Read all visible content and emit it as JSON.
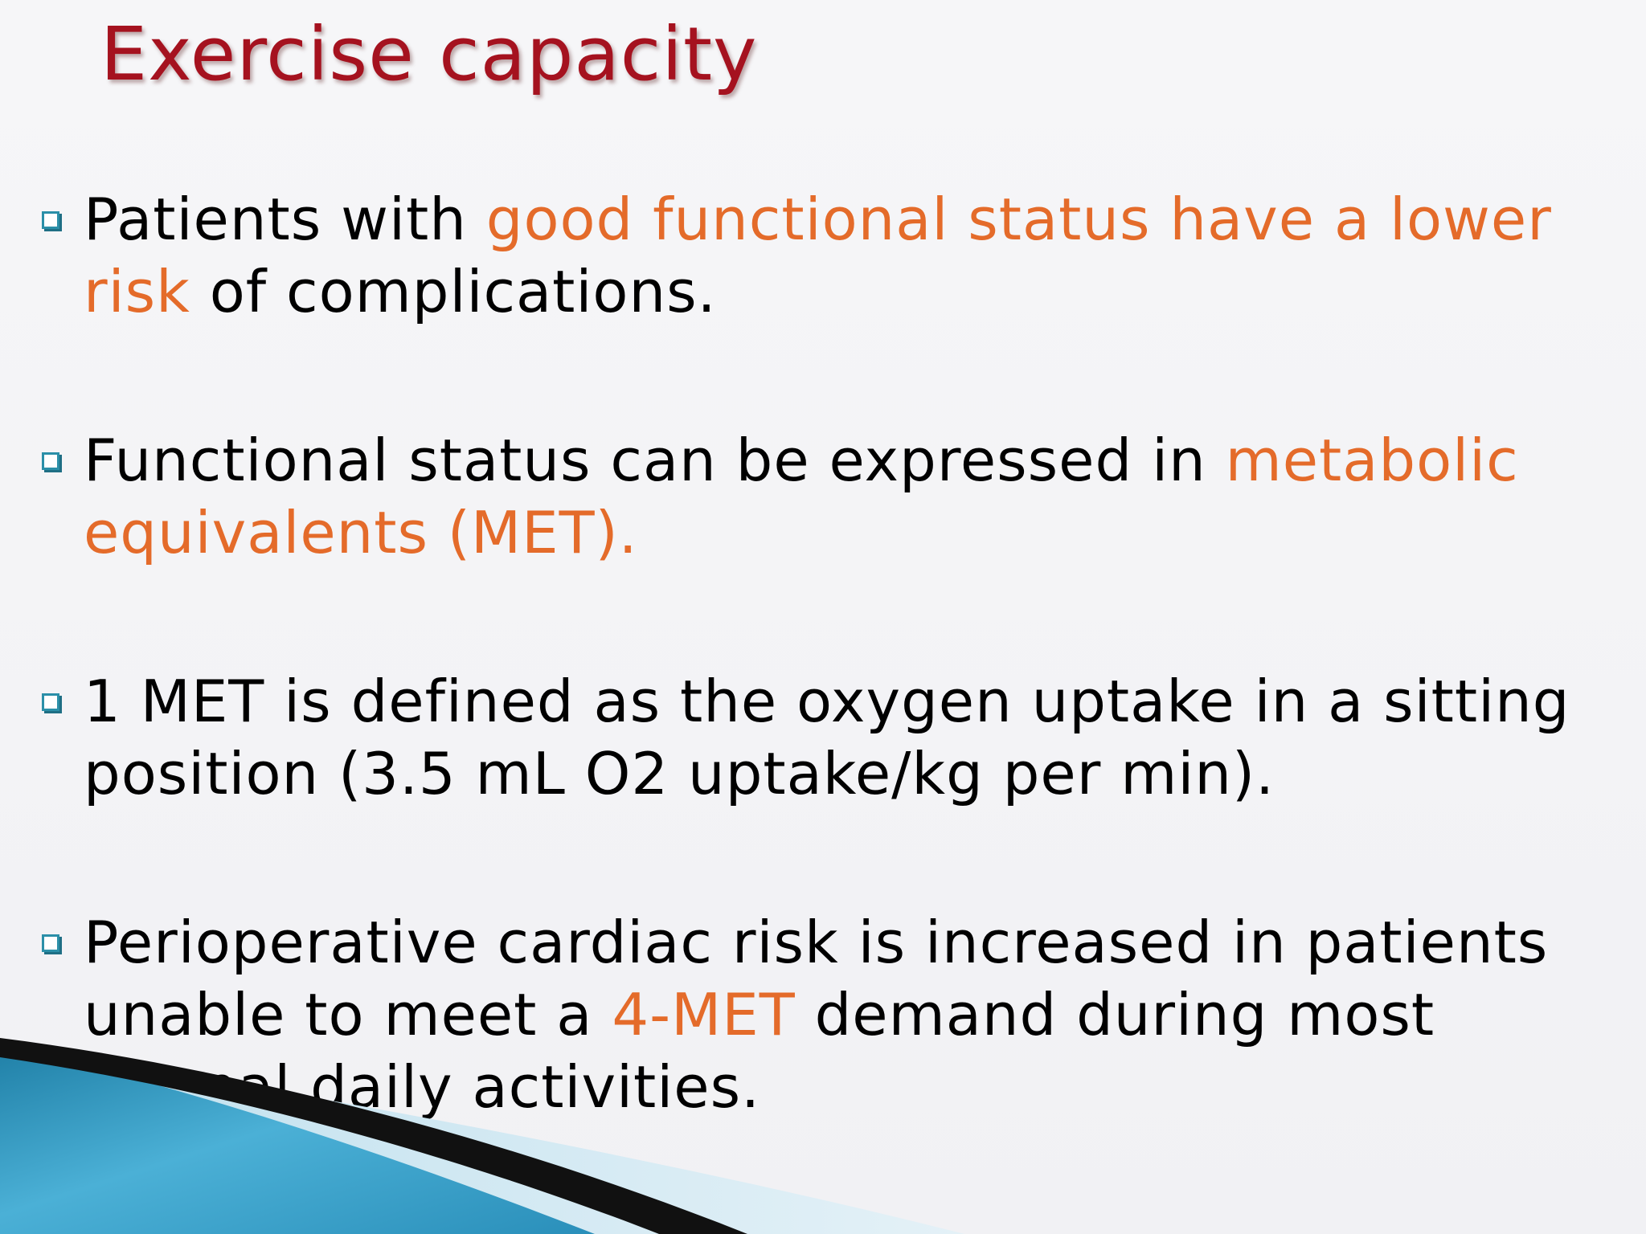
{
  "slide": {
    "title": "Exercise capacity",
    "bullets": [
      {
        "line1_a": "Patients with ",
        "line1_hl": "good functional status have a lower",
        "line2_hl": "risk",
        "line2_b": " of complications."
      },
      {
        "line1_a": " Functional status can be expressed in ",
        "line1_hl": "metabolic",
        "line2_hl": "equivalents (MET)."
      },
      {
        "line1_a": "1 MET is defined as the oxygen uptake in a sitting",
        "line2_a": "position (3.5 mL O2 uptake/kg per min)."
      },
      {
        "line1_a": "Perioperative cardiac risk is increased in patients",
        "line2_a": "unable to meet a ",
        "line2_hl": "4-MET",
        "line2_b": " demand during most",
        "line3_a": "normal daily activities."
      }
    ]
  },
  "colors": {
    "title": "#a5121f",
    "highlight": "#e46b2a",
    "bullet": "#2b8fa8",
    "text": "#000000"
  },
  "icons": {
    "bullet": "square-bullet-icon"
  }
}
